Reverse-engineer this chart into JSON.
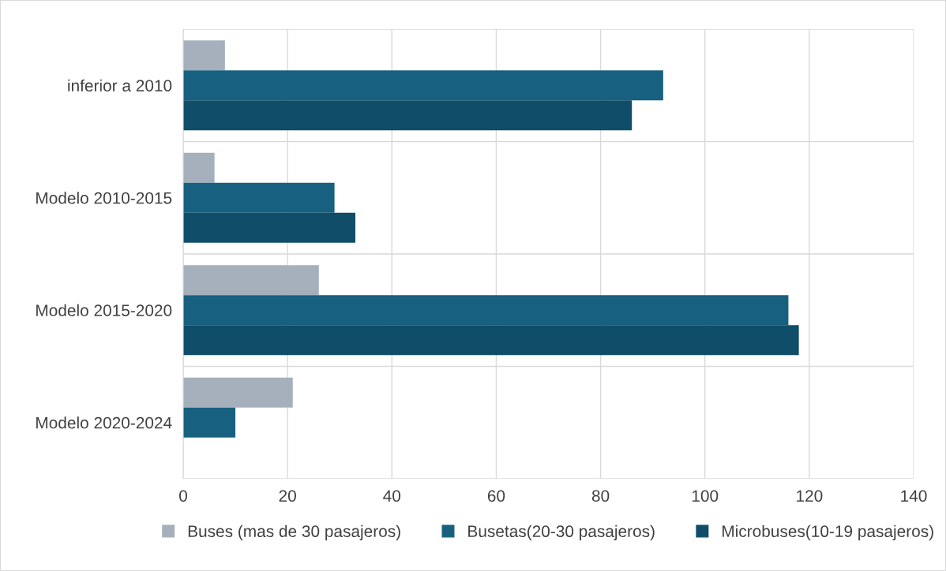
{
  "chart_data": {
    "type": "bar",
    "orientation": "horizontal",
    "categories": [
      "inferior a 2010",
      "Modelo 2010-2015",
      "Modelo 2015-2020",
      "Modelo 2020-2024"
    ],
    "series": [
      {
        "name": "Buses (mas de 30 pasajeros)",
        "color": "#a5b0bc",
        "values": [
          8,
          6,
          26,
          21
        ]
      },
      {
        "name": "Busetas(20-30 pasajeros)",
        "color": "#17607f",
        "values": [
          92,
          29,
          116,
          10
        ]
      },
      {
        "name": "Microbuses(10-19 pasajeros)",
        "color": "#0f4d68",
        "values": [
          86,
          33,
          118,
          null
        ]
      }
    ],
    "xlim": [
      0,
      140
    ],
    "xticks": [
      0,
      20,
      40,
      60,
      80,
      100,
      120,
      140
    ],
    "grid": true,
    "legend": "bottom"
  }
}
